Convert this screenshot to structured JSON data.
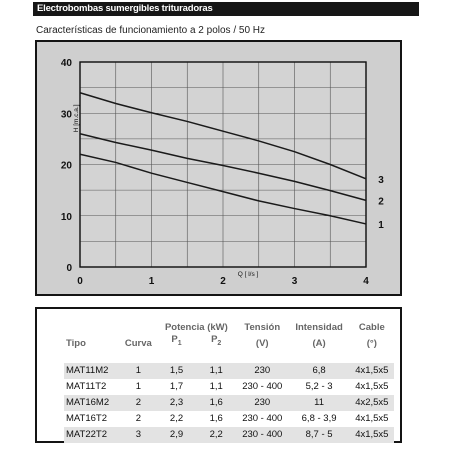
{
  "header": {
    "title": "Electrobombas sumergibles trituradoras"
  },
  "subtitle": "Características de funcionamiento a 2 polos / 50 Hz",
  "chart_data": {
    "type": "line",
    "title": "",
    "xlabel": "Q [ l/s ]",
    "ylabel": "H [m.c.a.]",
    "xlim": [
      0,
      4
    ],
    "ylim": [
      0,
      40
    ],
    "xticks": [
      "0",
      "1",
      "2",
      "3",
      "4"
    ],
    "yticks": [
      "0",
      "10",
      "20",
      "30",
      "40"
    ],
    "grid": true,
    "series": [
      {
        "name": "3",
        "x": [
          0,
          0.5,
          1,
          1.5,
          2,
          2.5,
          3,
          3.5,
          4
        ],
        "y": [
          34,
          31.9,
          30.1,
          28.4,
          26.5,
          24.6,
          22.5,
          20,
          17.2
        ]
      },
      {
        "name": "2",
        "x": [
          0,
          0.5,
          1,
          1.5,
          2,
          2.5,
          3,
          3.5,
          4
        ],
        "y": [
          26,
          24.3,
          22.8,
          21.2,
          19.8,
          18.3,
          16.7,
          14.9,
          13
        ]
      },
      {
        "name": "1",
        "x": [
          0,
          0.5,
          1,
          1.5,
          2,
          2.5,
          3,
          3.5,
          4
        ],
        "y": [
          22,
          20.4,
          18.3,
          16.5,
          14.7,
          12.9,
          11.4,
          10,
          8.4
        ]
      }
    ]
  },
  "table": {
    "headers": {
      "tipo": "Tipo",
      "curva": "Curva",
      "potencia": "Potencia (kW)",
      "p1": "P",
      "p1_sub": "1",
      "p2": "P",
      "p2_sub": "2",
      "tension": "Tensión",
      "tension_unit": "(V)",
      "intensidad": "Intensidad",
      "intensidad_unit": "(A)",
      "cable": "Cable",
      "cable_unit": "(°)"
    },
    "rows": [
      {
        "tipo": "MAT11M2",
        "curva": "1",
        "p1": "1,5",
        "p2": "1,1",
        "tension": "230",
        "intensidad": "6,8",
        "cable": "4x1,5x5"
      },
      {
        "tipo": "MAT11T2",
        "curva": "1",
        "p1": "1,7",
        "p2": "1,1",
        "tension": "230 - 400",
        "intensidad": "5,2 - 3",
        "cable": "4x1,5x5"
      },
      {
        "tipo": "MAT16M2",
        "curva": "2",
        "p1": "2,3",
        "p2": "1,6",
        "tension": "230",
        "intensidad": "11",
        "cable": "4x2,5x5"
      },
      {
        "tipo": "MAT16T2",
        "curva": "2",
        "p1": "2,2",
        "p2": "1,6",
        "tension": "230 - 400",
        "intensidad": "6,8 - 3,9",
        "cable": "4x1,5x5"
      },
      {
        "tipo": "MAT22T2",
        "curva": "3",
        "p1": "2,9",
        "p2": "2,2",
        "tension": "230 - 400",
        "intensidad": "8,7 - 5",
        "cable": "4x1,5x5"
      }
    ]
  }
}
